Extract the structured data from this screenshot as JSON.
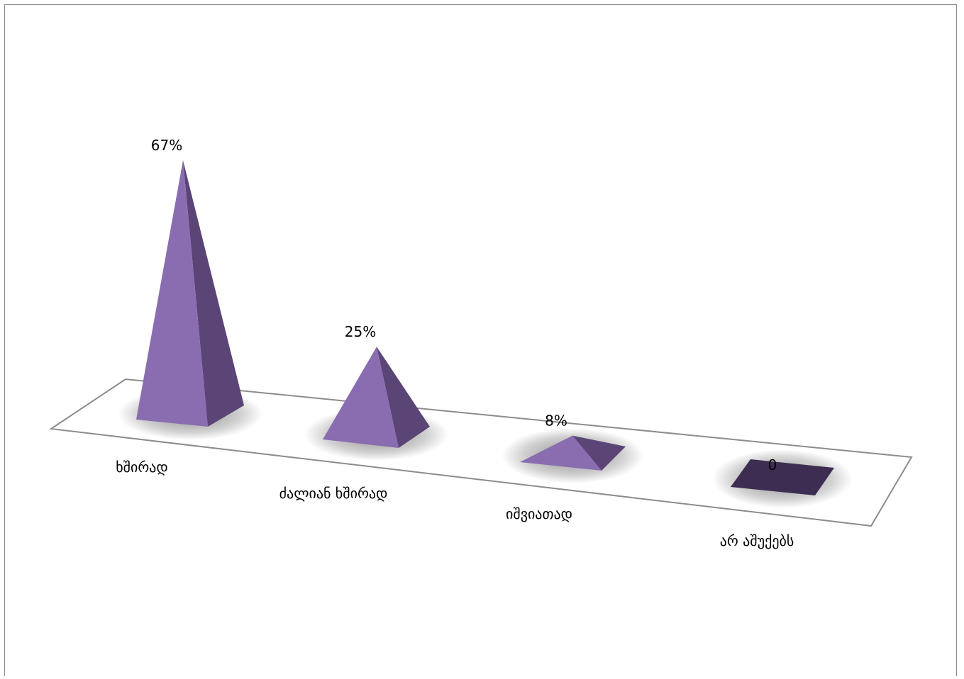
{
  "chart_data": {
    "type": "bar",
    "style": "3d-pyramid",
    "title": "",
    "xlabel": "",
    "ylabel": "",
    "categories": [
      "ხშირად",
      "ძალიან ხშირად",
      "იშვიათად",
      "არ აშუქებს"
    ],
    "values": [
      67,
      25,
      8,
      0
    ],
    "data_labels": [
      "67%",
      "25%",
      "8%",
      "0"
    ],
    "unit": "%",
    "ylim": [
      0,
      67
    ],
    "grid": false,
    "legend": "none"
  },
  "colors": {
    "pyramid_front": "#8a6db0",
    "pyramid_side": "#5b4577",
    "pyramid_zero": "#3e2d52",
    "floor_stroke": "#8c8c8c",
    "frame_stroke": "#8c8c8c"
  }
}
